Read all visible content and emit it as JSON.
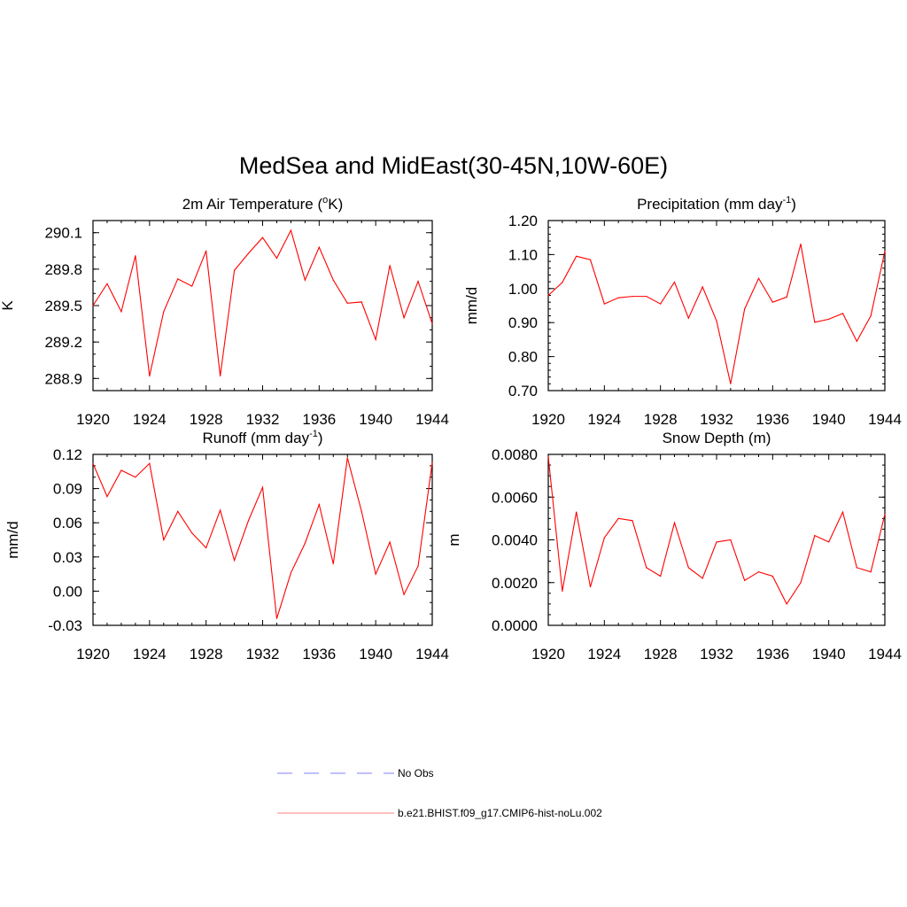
{
  "title": "MedSea and MidEast(30-45N,10W-60E)",
  "legend": [
    {
      "label": "No Obs",
      "color": "#9999ff",
      "dash": true
    },
    {
      "label": "b.e21.BHIST.f09_g17.CMIP6-hist-noLu.002",
      "color": "#ff0000",
      "dash": false
    }
  ],
  "chart_data": [
    {
      "type": "line",
      "title": "2m Air Temperature (",
      "title_sup": "o",
      "title_after": "K)",
      "ylabel": "K",
      "x": [
        1920,
        1921,
        1922,
        1923,
        1924,
        1925,
        1926,
        1927,
        1928,
        1929,
        1930,
        1931,
        1932,
        1933,
        1934,
        1935,
        1936,
        1937,
        1938,
        1939,
        1940,
        1941,
        1942,
        1943,
        1944
      ],
      "series": [
        {
          "name": "b.e21.BHIST.f09_g17.CMIP6-hist-noLu.002",
          "color": "#ff0000",
          "values": [
            289.5,
            289.68,
            289.45,
            289.91,
            288.92,
            289.45,
            289.72,
            289.66,
            289.95,
            288.92,
            289.79,
            289.93,
            290.06,
            289.89,
            290.12,
            289.71,
            289.98,
            289.71,
            289.52,
            289.53,
            289.22,
            289.83,
            289.4,
            289.7,
            289.35
          ]
        }
      ],
      "xlim": [
        1920,
        1944
      ],
      "ylim": [
        288.8,
        290.2
      ],
      "xticks": [
        1920,
        1924,
        1928,
        1932,
        1936,
        1940,
        1944
      ],
      "xtick_labels": [
        "1920",
        "1924",
        "1928",
        "1932",
        "1936",
        "1940",
        "1944"
      ],
      "yticks": [
        288.9,
        289.2,
        289.5,
        289.8,
        290.1
      ],
      "ytick_labels": [
        "288.9",
        "289.2",
        "289.5",
        "289.8",
        "290.1"
      ],
      "yminor": 0.1
    },
    {
      "type": "line",
      "title": "Precipitation (mm day",
      "title_sup": "-1",
      "title_after": ")",
      "ylabel": "mm/d",
      "x": [
        1920,
        1921,
        1922,
        1923,
        1924,
        1925,
        1926,
        1927,
        1928,
        1929,
        1930,
        1931,
        1932,
        1933,
        1934,
        1935,
        1936,
        1937,
        1938,
        1939,
        1940,
        1941,
        1942,
        1943,
        1944
      ],
      "series": [
        {
          "name": "b.e21.BHIST.f09_g17.CMIP6-hist-noLu.002",
          "color": "#ff0000",
          "values": [
            0.98,
            1.018,
            1.095,
            1.085,
            0.955,
            0.973,
            0.977,
            0.977,
            0.955,
            1.019,
            0.913,
            1.005,
            0.905,
            0.72,
            0.94,
            1.03,
            0.96,
            0.975,
            1.131,
            0.901,
            0.91,
            0.927,
            0.845,
            0.92,
            1.11
          ]
        }
      ],
      "xlim": [
        1920,
        1944
      ],
      "ylim": [
        0.7,
        1.2
      ],
      "xticks": [
        1920,
        1924,
        1928,
        1932,
        1936,
        1940,
        1944
      ],
      "xtick_labels": [
        "1920",
        "1924",
        "1928",
        "1932",
        "1936",
        "1940",
        "1944"
      ],
      "yticks": [
        0.7,
        0.8,
        0.9,
        1.0,
        1.1,
        1.2
      ],
      "ytick_labels": [
        "0.70",
        "0.80",
        "0.90",
        "1.00",
        "1.10",
        "1.20"
      ],
      "yminor": 0.02
    },
    {
      "type": "line",
      "title": "Runoff (mm day",
      "title_sup": "-1",
      "title_after": ")",
      "ylabel": "mm/d",
      "x": [
        1920,
        1921,
        1922,
        1923,
        1924,
        1925,
        1926,
        1927,
        1928,
        1929,
        1930,
        1931,
        1932,
        1933,
        1934,
        1935,
        1936,
        1937,
        1938,
        1939,
        1940,
        1941,
        1942,
        1943,
        1944
      ],
      "series": [
        {
          "name": "b.e21.BHIST.f09_g17.CMIP6-hist-noLu.002",
          "color": "#ff0000",
          "values": [
            0.112,
            0.083,
            0.106,
            0.1,
            0.112,
            0.045,
            0.07,
            0.051,
            0.038,
            0.071,
            0.027,
            0.062,
            0.091,
            -0.024,
            0.016,
            0.042,
            0.076,
            0.024,
            0.117,
            0.07,
            0.015,
            0.043,
            -0.003,
            0.022,
            0.113
          ]
        }
      ],
      "xlim": [
        1920,
        1944
      ],
      "ylim": [
        -0.03,
        0.12
      ],
      "xticks": [
        1920,
        1924,
        1928,
        1932,
        1936,
        1940,
        1944
      ],
      "xtick_labels": [
        "1920",
        "1924",
        "1928",
        "1932",
        "1936",
        "1940",
        "1944"
      ],
      "yticks": [
        -0.03,
        0.0,
        0.03,
        0.06,
        0.09,
        0.12
      ],
      "ytick_labels": [
        "-0.03",
        "0.00",
        "0.03",
        "0.06",
        "0.09",
        "0.12"
      ],
      "yminor": 0.01
    },
    {
      "type": "line",
      "title": "Snow Depth (m)",
      "title_sup": "",
      "title_after": "",
      "ylabel": "m",
      "x": [
        1920,
        1921,
        1922,
        1923,
        1924,
        1925,
        1926,
        1927,
        1928,
        1929,
        1930,
        1931,
        1932,
        1933,
        1934,
        1935,
        1936,
        1937,
        1938,
        1939,
        1940,
        1941,
        1942,
        1943,
        1944
      ],
      "series": [
        {
          "name": "b.e21.BHIST.f09_g17.CMIP6-hist-noLu.002",
          "color": "#ff0000",
          "values": [
            0.0079,
            0.0016,
            0.0053,
            0.0018,
            0.0041,
            0.005,
            0.0049,
            0.0027,
            0.0023,
            0.0048,
            0.0027,
            0.0022,
            0.0039,
            0.004,
            0.0021,
            0.0025,
            0.0023,
            0.001,
            0.002,
            0.0042,
            0.0039,
            0.0053,
            0.0027,
            0.0025,
            0.0052
          ]
        }
      ],
      "xlim": [
        1920,
        1944
      ],
      "ylim": [
        0.0,
        0.008
      ],
      "xticks": [
        1920,
        1924,
        1928,
        1932,
        1936,
        1940,
        1944
      ],
      "xtick_labels": [
        "1920",
        "1924",
        "1928",
        "1932",
        "1936",
        "1940",
        "1944"
      ],
      "yticks": [
        0.0,
        0.002,
        0.004,
        0.006,
        0.008
      ],
      "ytick_labels": [
        "0.0000",
        "0.0020",
        "0.0040",
        "0.0060",
        "0.0080"
      ],
      "yminor": 0.0005
    }
  ]
}
